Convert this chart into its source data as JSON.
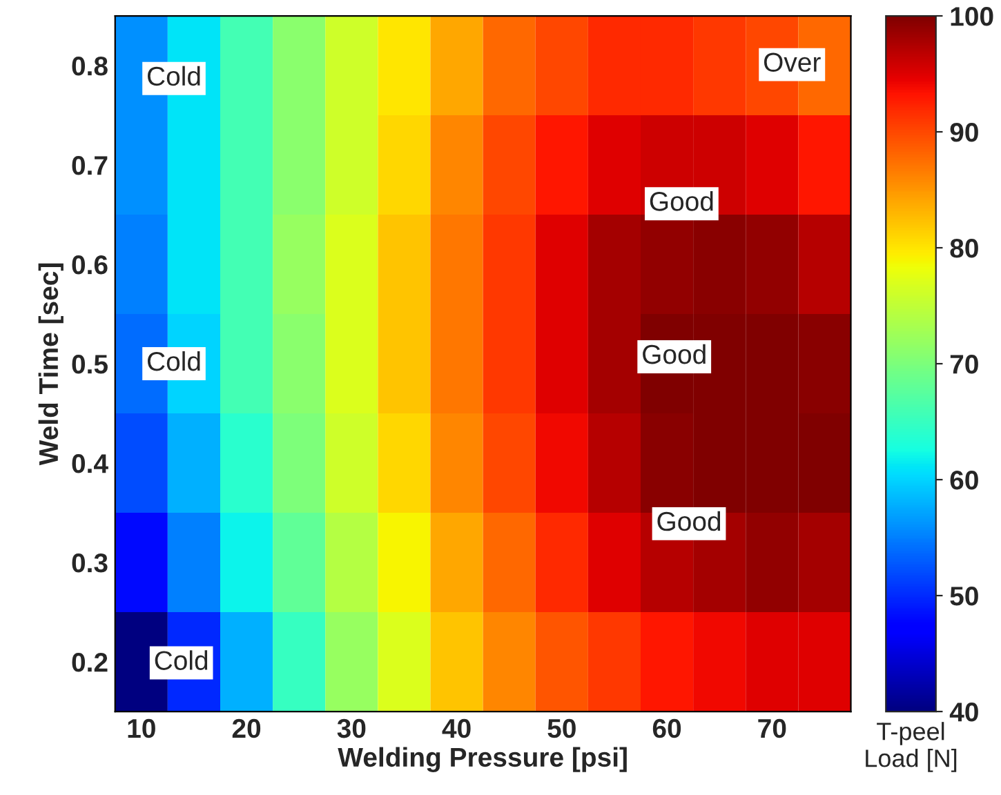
{
  "chart_data": {
    "type": "heatmap",
    "xlabel": "Welding Pressure [psi]",
    "ylabel": "Weld Time [sec]",
    "clabel": "T-peel\nLoad [N]",
    "categories": [
      "10",
      null,
      "20",
      null,
      "30",
      null,
      "40",
      null,
      "50",
      null,
      "60",
      null,
      "70",
      null
    ],
    "y_categories": [
      "0.8",
      "0.7",
      "0.6",
      "0.5",
      "0.4",
      "0.3",
      "0.2"
    ],
    "cells": [
      [
        56,
        61,
        66,
        71,
        76,
        80,
        84,
        88,
        90,
        92,
        92,
        91,
        90,
        88
      ],
      [
        56,
        61,
        66,
        71,
        76,
        81,
        86,
        90,
        93,
        95,
        96,
        96,
        95,
        93
      ],
      [
        55,
        61,
        66,
        72,
        77,
        82,
        87,
        91,
        95,
        98,
        99,
        99.5,
        99,
        97
      ],
      [
        54,
        60,
        66,
        71,
        77,
        82,
        87,
        91,
        95,
        98,
        100,
        101,
        101,
        99.5
      ],
      [
        52,
        58,
        64,
        70,
        76,
        81,
        86,
        90,
        94,
        97,
        99.5,
        100.5,
        101,
        100
      ],
      [
        48,
        55,
        62,
        68,
        74,
        79,
        84,
        88,
        92,
        95,
        97,
        98,
        99,
        98
      ],
      [
        40,
        50,
        58,
        65,
        72,
        77,
        82,
        86,
        89,
        91,
        93,
        94,
        95,
        95
      ]
    ],
    "clim": [
      40,
      100
    ],
    "cticks": [
      40,
      50,
      60,
      70,
      80,
      90,
      100
    ],
    "annotations": [
      "Cold",
      "Cold",
      "Cold",
      "Good",
      "Good",
      "Good",
      "Over"
    ]
  }
}
